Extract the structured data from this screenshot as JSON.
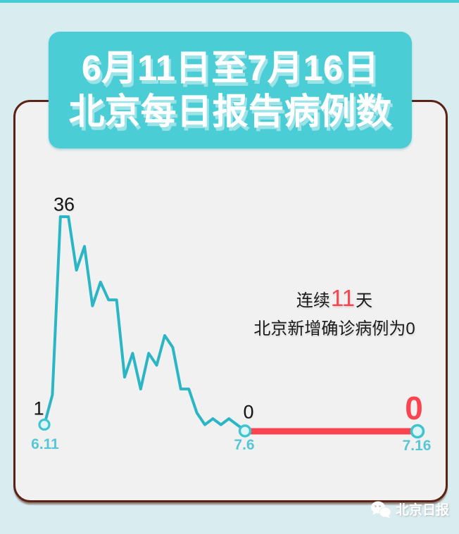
{
  "colors": {
    "background": "#d9edf1",
    "top_strip": "#45ccd5",
    "banner": "#4bcdd6",
    "card_fill": "#f1f1f2",
    "card_border": "#5b2315",
    "line_teal": "#2bb6c5",
    "zero_line_red": "#fb4350",
    "date_label_teal": "#58c7d5",
    "highlight_red": "#fa4450",
    "dark_text": "#1b1b1b",
    "dot_fill": "#ddf6f8",
    "dot_stroke": "#3fc4d2"
  },
  "title": {
    "line1": "6月11日至7月16日",
    "line2": "北京每日报告病例数"
  },
  "chart_data": {
    "type": "line",
    "title": "6月11日至7月16日北京每日报告病例数",
    "xlabel": "",
    "ylabel": "",
    "ylim": [
      0,
      36
    ],
    "grid": false,
    "series": [
      {
        "name": "每日报告病例数",
        "x": [
          "6.11",
          "6.12",
          "6.13",
          "6.14",
          "6.15",
          "6.16",
          "6.17",
          "6.18",
          "6.19",
          "6.20",
          "6.21",
          "6.22",
          "6.23",
          "6.24",
          "6.25",
          "6.26",
          "6.27",
          "6.28",
          "6.29",
          "6.30",
          "7.1",
          "7.2",
          "7.3",
          "7.4",
          "7.5",
          "7.6"
        ],
        "values": [
          1,
          6,
          36,
          36,
          27,
          31,
          21,
          25,
          22,
          22,
          9,
          13,
          7,
          13,
          11,
          16,
          14,
          7,
          7,
          3,
          1,
          2,
          1,
          2,
          1,
          0
        ]
      }
    ],
    "zero_streak": {
      "from": "7.6",
      "to": "7.16",
      "value": 0,
      "days": 11
    },
    "annotations": {
      "peak_label": "36",
      "start_label": "1",
      "start_date": "6.11",
      "zero_label": "0",
      "zero_date": "7.6",
      "final_label": "0",
      "final_date": "7.16"
    }
  },
  "callout": {
    "prefix": "连续",
    "number": "11",
    "suffix": "天",
    "line2": "北京新增确诊病例为0"
  },
  "watermark": {
    "text": "北京日报"
  }
}
